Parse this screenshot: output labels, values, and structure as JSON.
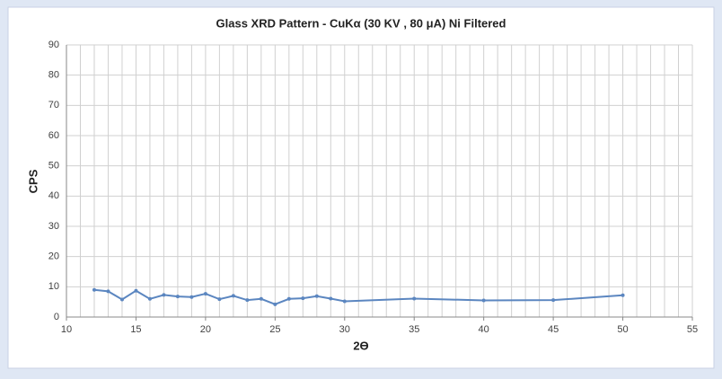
{
  "chart_data": {
    "type": "line",
    "title": "Glass XRD Pattern - CuKα (30 KV , 80 μA) Ni Filtered",
    "x_label": "2ϴ",
    "y_label": "CPS",
    "x": [
      12,
      13,
      14,
      15,
      16,
      17,
      18,
      19,
      20,
      21,
      22,
      23,
      24,
      25,
      26,
      27,
      28,
      29,
      30,
      35,
      40,
      45,
      50
    ],
    "series": [
      {
        "name": "CPS",
        "color": "#5b86c0",
        "values": [
          9,
          8.5,
          5.8,
          8.7,
          6,
          7.3,
          6.8,
          6.6,
          7.7,
          5.9,
          7,
          5.6,
          6,
          4.2,
          6,
          6.2,
          6.9,
          6.1,
          5.2,
          6.1,
          5.5,
          5.6,
          7.2
        ]
      }
    ],
    "xlim": [
      10,
      55
    ],
    "xticks": [
      10,
      15,
      20,
      25,
      30,
      35,
      40,
      45,
      50,
      55
    ],
    "ylim": [
      0,
      90
    ],
    "yticks": [
      0,
      10,
      20,
      30,
      40,
      50,
      60,
      70,
      80,
      90
    ],
    "grid": true,
    "xgrid_step": 1
  }
}
